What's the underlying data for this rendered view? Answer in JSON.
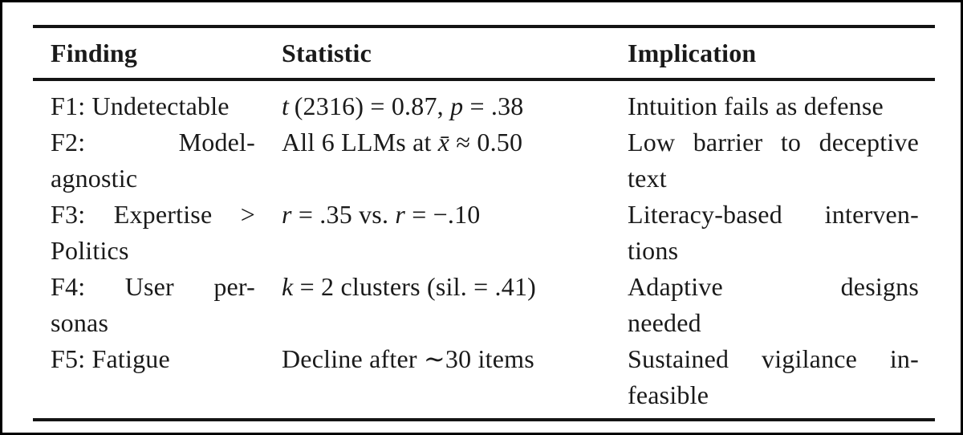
{
  "figure": {
    "kind": "paper-results-table"
  },
  "table": {
    "headers": {
      "finding": "Finding",
      "statistic": "Statistic",
      "implication": "Implication"
    },
    "rows": [
      {
        "finding_lines": [
          "F1: Undetectable"
        ],
        "statistic_parts": [
          "t",
          " (2316) = 0.87, ",
          "p",
          " = .38"
        ],
        "implication_lines": [
          "Intuition fails as defense"
        ]
      },
      {
        "finding_lines": [
          "F2: Model-",
          "agnostic"
        ],
        "statistic_parts": [
          "All 6 LLMs at ",
          "x̄",
          " ≈ 0.50"
        ],
        "implication_lines": [
          "Low barrier to deceptive",
          "text"
        ]
      },
      {
        "finding_lines": [
          "F3: Expertise >",
          "Politics"
        ],
        "statistic_parts": [
          "r",
          " = .35 vs. ",
          "r",
          " = −.10"
        ],
        "implication_lines": [
          "Literacy-based interven-",
          "tions"
        ]
      },
      {
        "finding_lines": [
          "F4: User per-",
          "sonas"
        ],
        "statistic_parts": [
          "k",
          " = 2 clusters (sil. = .41)"
        ],
        "implication_lines": [
          "Adaptive designs",
          "needed"
        ]
      },
      {
        "finding_lines": [
          "F5: Fatigue"
        ],
        "statistic_parts": [
          "Decline after ∼30 items"
        ],
        "implication_lines": [
          "Sustained vigilance in-",
          "feasible"
        ]
      }
    ]
  },
  "colors": {
    "text": "#1a1a1a",
    "rule": "#141414",
    "frame": "#000000",
    "background": "#ffffff"
  }
}
